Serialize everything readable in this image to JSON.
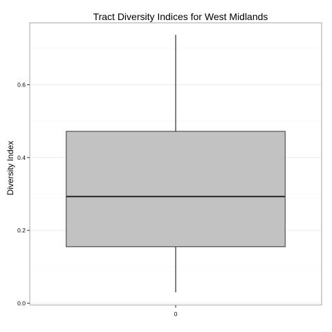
{
  "chart_data": {
    "type": "box",
    "title": "Tract Diversity Indices for West Midlands",
    "xlabel": "",
    "ylabel": "Diversity Index",
    "categories": [
      "0"
    ],
    "boxes": [
      {
        "category": "0",
        "min": 0.03,
        "q1": 0.155,
        "median": 0.293,
        "q3": 0.472,
        "max": 0.737
      }
    ],
    "ylim": [
      -0.005,
      0.77
    ],
    "yticks": [
      0.0,
      0.2,
      0.4,
      0.6
    ],
    "ytick_labels": [
      "0.0",
      "0.2",
      "0.4",
      "0.6"
    ],
    "grid": true,
    "colors": {
      "box_fill": "#c2c2c2",
      "box_stroke": "#333333",
      "grid_major": "#ebebeb",
      "grid_minor": "#f5f5f5",
      "panel_border": "#a6a6a6"
    }
  }
}
